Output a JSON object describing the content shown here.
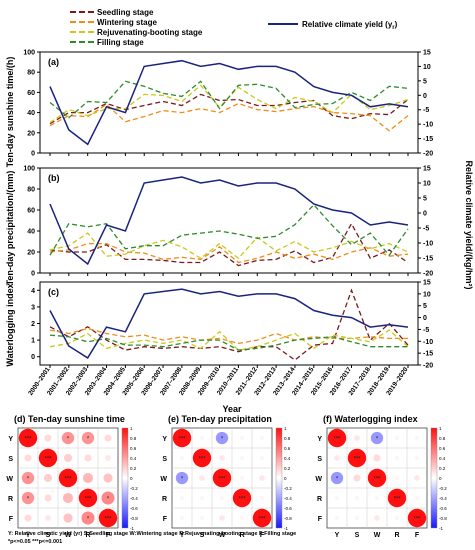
{
  "legend": {
    "seedling": "Seedling stage",
    "wintering": "Wintering stage",
    "rejuvenating": "Rejuvenating-booting stage",
    "filling": "Filling stage",
    "climate_yield": "Relative climate yield (y",
    "climate_yield_sub": "r",
    "climate_yield_close": ")"
  },
  "colors": {
    "seedling": "#7b1a1a",
    "wintering": "#f08c1a",
    "rejuvenating": "#c9c91a",
    "filling": "#2e8b2e",
    "climate_yield": "#1a237e"
  },
  "years": [
    "2000–2001",
    "2001–2002",
    "2002–2003",
    "2003–2004",
    "2004–2005",
    "2005–2006",
    "2006–2007",
    "2007–2008",
    "2008–2009",
    "2009–2010",
    "2010–2011",
    "2011–2012",
    "2012–2013",
    "2013–2014",
    "2014–2015",
    "2015–2016",
    "2016–2017",
    "2017–2018",
    "2018–2019",
    "2019–2020"
  ],
  "xlabel": "Year",
  "right_axis_label": "Relative climate yield/(kg/hm²)",
  "heatmap_ticks": [
    "1",
    "0.8",
    "0.6",
    "0.4",
    "0.2",
    "0",
    "-0.2",
    "-0.4",
    "-0.6",
    "-0.8",
    "-1"
  ],
  "heatmap_categories": [
    "Y",
    "S",
    "W",
    "R",
    "F"
  ],
  "footnote_line1": "Y: Relative climatic yield (yr)     S:Seedling stage     W:Wintering stage     R:Rejuvenating-booting stage     F:Filling stage",
  "footnote_line2": "*p<=0.05  ***p<=0.001",
  "chart_data": [
    {
      "type": "line",
      "panel": "(a)",
      "ylabel": "Ten-day sunshine time/(h)",
      "ylim": [
        0,
        100
      ],
      "yticks": [
        0,
        20,
        40,
        60,
        80,
        100
      ],
      "y2lim": [
        -20,
        15
      ],
      "y2ticks": [
        -20,
        -15,
        -10,
        -5,
        0,
        5,
        10,
        15
      ],
      "series": [
        {
          "name": "Seedling stage",
          "axis": "left",
          "values": [
            29,
            40,
            40,
            49,
            43,
            47,
            51,
            47,
            58,
            52,
            53,
            47,
            47,
            50,
            52,
            37,
            34,
            39,
            38,
            53
          ]
        },
        {
          "name": "Wintering stage",
          "axis": "left",
          "values": [
            27,
            37,
            36,
            48,
            31,
            36,
            42,
            40,
            44,
            40,
            49,
            43,
            41,
            44,
            46,
            40,
            39,
            37,
            22,
            37
          ]
        },
        {
          "name": "Rejuvenating-booting stage",
          "axis": "left",
          "values": [
            30,
            43,
            37,
            44,
            44,
            58,
            57,
            51,
            67,
            45,
            65,
            53,
            44,
            55,
            51,
            40,
            58,
            43,
            47,
            53
          ]
        },
        {
          "name": "Filling stage",
          "axis": "left",
          "values": [
            50,
            35,
            51,
            50,
            71,
            66,
            59,
            56,
            71,
            44,
            67,
            68,
            64,
            45,
            48,
            49,
            60,
            52,
            66,
            64
          ]
        },
        {
          "name": "Relative climate yield (yr)",
          "axis": "right",
          "values": [
            3,
            -12,
            -17,
            -4,
            -6,
            10,
            11,
            12,
            10,
            11,
            9,
            10,
            10,
            8,
            3,
            1,
            0,
            -4,
            -3,
            -4
          ]
        }
      ]
    },
    {
      "type": "line",
      "panel": "(b)",
      "ylabel": "Ten-day precipitation/(mm)",
      "ylim": [
        0,
        100
      ],
      "yticks": [
        0,
        20,
        40,
        60,
        80,
        100
      ],
      "y2lim": [
        -20,
        15
      ],
      "y2ticks": [
        -20,
        -15,
        -10,
        -5,
        0,
        5,
        10,
        15
      ],
      "series": [
        {
          "name": "Seedling stage",
          "axis": "left",
          "values": [
            22,
            20,
            20,
            27,
            13,
            13,
            12,
            10,
            10,
            20,
            7,
            12,
            13,
            21,
            10,
            15,
            47,
            14,
            22,
            10
          ]
        },
        {
          "name": "Wintering stage",
          "axis": "left",
          "values": [
            20,
            22,
            28,
            28,
            20,
            19,
            13,
            15,
            13,
            25,
            10,
            14,
            20,
            14,
            18,
            13,
            20,
            24,
            16,
            18
          ]
        },
        {
          "name": "Rejuvenating-booting stage",
          "axis": "left",
          "values": [
            22,
            26,
            38,
            16,
            18,
            26,
            31,
            25,
            14,
            28,
            14,
            34,
            21,
            30,
            20,
            24,
            30,
            23,
            28,
            20
          ]
        },
        {
          "name": "Filling stage",
          "axis": "left",
          "values": [
            17,
            47,
            44,
            47,
            23,
            26,
            26,
            36,
            38,
            40,
            37,
            33,
            35,
            46,
            65,
            45,
            27,
            38,
            17,
            42
          ]
        },
        {
          "name": "Relative climate yield (yr)",
          "axis": "right",
          "values": [
            3,
            -12,
            -17,
            -4,
            -6,
            10,
            11,
            12,
            10,
            11,
            9,
            10,
            10,
            8,
            3,
            1,
            0,
            -4,
            -3,
            -4
          ]
        }
      ]
    },
    {
      "type": "line",
      "panel": "(c)",
      "ylabel": "Waterlogging index",
      "ylim": [
        -0.5,
        4.5
      ],
      "yticks": [
        0,
        1,
        2,
        3,
        4
      ],
      "y2lim": [
        -20,
        15
      ],
      "y2ticks": [
        -20,
        -15,
        -10,
        -5,
        0,
        5,
        10,
        15
      ],
      "series": [
        {
          "name": "Seedling stage",
          "axis": "left",
          "values": [
            1.8,
            1.2,
            1.8,
            1.0,
            0.4,
            0.6,
            0.5,
            0.6,
            0.5,
            0.6,
            0.3,
            0.6,
            0.6,
            -0.2,
            0.7,
            0.8,
            4.0,
            1.0,
            2.0,
            0.7
          ]
        },
        {
          "name": "Wintering stage",
          "axis": "left",
          "values": [
            1.6,
            1.4,
            1.7,
            1.4,
            1.2,
            1.3,
            1.0,
            1.2,
            1.0,
            1.1,
            0.8,
            1.0,
            1.4,
            1.0,
            1.2,
            1.1,
            1.1,
            1.2,
            1.1,
            1.1
          ]
        },
        {
          "name": "Rejuvenating-booting stage",
          "axis": "left",
          "values": [
            0.6,
            0.8,
            1.4,
            0.5,
            0.8,
            1.0,
            0.8,
            1.0,
            0.5,
            1.5,
            0.4,
            0.6,
            1.0,
            1.4,
            0.5,
            1.3,
            1.1,
            0.9,
            1.6,
            0.6
          ]
        },
        {
          "name": "Filling stage",
          "axis": "left",
          "values": [
            1.3,
            1.2,
            0.9,
            1.1,
            0.7,
            0.7,
            0.6,
            0.8,
            1.0,
            1.0,
            0.4,
            0.5,
            0.7,
            1.0,
            1.1,
            1.2,
            0.9,
            0.6,
            0.6,
            0.6
          ]
        },
        {
          "name": "Relative climate yield (yr)",
          "axis": "right",
          "values": [
            3,
            -12,
            -17,
            -4,
            -6,
            10,
            11,
            12,
            10,
            11,
            9,
            10,
            10,
            8,
            3,
            1,
            0,
            -4,
            -3,
            -4
          ]
        }
      ]
    },
    {
      "type": "heatmap",
      "panel": "(d)",
      "title": "Ten-day sunshine time",
      "rows": [
        "Y",
        "S",
        "W",
        "R",
        "F"
      ],
      "cols": [
        "Y",
        "S",
        "W",
        "R",
        "F"
      ],
      "values": [
        [
          1,
          0.15,
          0.45,
          0.45,
          0.15
        ],
        [
          0.15,
          1,
          0.2,
          0.15,
          0.1
        ],
        [
          0.45,
          0.2,
          1,
          0.3,
          0.25
        ],
        [
          0.45,
          0.15,
          0.3,
          1,
          0.5
        ],
        [
          0.15,
          0.1,
          0.25,
          0.5,
          1
        ]
      ],
      "stars": [
        [
          "***",
          "",
          "*",
          "*",
          ""
        ],
        [
          "",
          "***",
          "",
          "",
          ""
        ],
        [
          "*",
          "",
          "***",
          "",
          ""
        ],
        [
          "*",
          "",
          "",
          "***",
          "*"
        ],
        [
          "",
          "",
          "",
          "*",
          "***"
        ]
      ],
      "colorbar": [
        -1,
        1
      ]
    },
    {
      "type": "heatmap",
      "panel": "(e)",
      "title": "Ten-day precipitation",
      "rows": [
        "Y",
        "S",
        "W",
        "R",
        "F"
      ],
      "cols": [
        "Y",
        "S",
        "W",
        "R",
        "F"
      ],
      "values": [
        [
          1,
          0.05,
          -0.45,
          0.05,
          0.05
        ],
        [
          0.05,
          1,
          0.1,
          0.05,
          0.05
        ],
        [
          -0.45,
          0.1,
          1,
          0.05,
          0.1
        ],
        [
          0.05,
          0.05,
          0.05,
          1,
          0.05
        ],
        [
          0.05,
          0.05,
          0.1,
          0.05,
          1
        ]
      ],
      "stars": [
        [
          "***",
          "",
          "*",
          "",
          ""
        ],
        [
          "",
          "***",
          "",
          "",
          ""
        ],
        [
          "*",
          "",
          "***",
          "",
          ""
        ],
        [
          "",
          "",
          "",
          "***",
          ""
        ],
        [
          "",
          "",
          "",
          "",
          "***"
        ]
      ],
      "colorbar": [
        -1,
        1
      ]
    },
    {
      "type": "heatmap",
      "panel": "(f)",
      "title": "Waterlogging index",
      "rows": [
        "Y",
        "S",
        "W",
        "R",
        "F"
      ],
      "cols": [
        "Y",
        "S",
        "W",
        "R",
        "F"
      ],
      "values": [
        [
          1,
          0.1,
          -0.45,
          0.05,
          0.05
        ],
        [
          0.1,
          1,
          0.15,
          0.05,
          0.05
        ],
        [
          -0.45,
          0.15,
          1,
          0.05,
          0.1
        ],
        [
          0.05,
          0.05,
          0.05,
          1,
          0.05
        ],
        [
          0.05,
          0.05,
          0.1,
          0.05,
          1
        ]
      ],
      "stars": [
        [
          "***",
          "",
          "*",
          "",
          ""
        ],
        [
          "",
          "***",
          "",
          "",
          ""
        ],
        [
          "*",
          "",
          "***",
          "",
          ""
        ],
        [
          "",
          "",
          "",
          "***",
          ""
        ],
        [
          "",
          "",
          "",
          "",
          "***"
        ]
      ],
      "colorbar": [
        -1,
        1
      ]
    }
  ]
}
